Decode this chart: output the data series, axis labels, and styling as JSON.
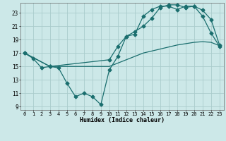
{
  "xlabel": "Humidex (Indice chaleur)",
  "bg_color": "#cce8e8",
  "grid_color": "#aacccc",
  "line_color": "#1a6e6e",
  "xlim": [
    -0.5,
    23.5
  ],
  "ylim": [
    8.5,
    24.5
  ],
  "xticks": [
    0,
    1,
    2,
    3,
    4,
    5,
    6,
    7,
    8,
    9,
    10,
    11,
    12,
    13,
    14,
    15,
    16,
    17,
    18,
    19,
    20,
    21,
    22,
    23
  ],
  "yticks": [
    9,
    11,
    13,
    15,
    17,
    19,
    21,
    23
  ],
  "line1_x": [
    0,
    1,
    2,
    3,
    4,
    5,
    6,
    7,
    8,
    9,
    10,
    11,
    12,
    13,
    14,
    15,
    16,
    17,
    18,
    19,
    20,
    21,
    22,
    23
  ],
  "line1_y": [
    17,
    16.2,
    14.8,
    15,
    14.8,
    12.5,
    10.5,
    11,
    10.5,
    9.3,
    14.5,
    16.5,
    19.5,
    19.8,
    22.5,
    23.5,
    24,
    24,
    23.5,
    24,
    24,
    22.5,
    20,
    18
  ],
  "line2_x": [
    0,
    3,
    10,
    11,
    12,
    13,
    14,
    15,
    16,
    17,
    18,
    19,
    20,
    21,
    22,
    23
  ],
  "line2_y": [
    17,
    15,
    16,
    18,
    19.5,
    20.2,
    21,
    22.2,
    23.8,
    24.2,
    24.2,
    23.8,
    24,
    23.4,
    22,
    18.2
  ],
  "line3_x": [
    0,
    3,
    10,
    11,
    12,
    13,
    14,
    15,
    16,
    17,
    18,
    19,
    20,
    21,
    22,
    23
  ],
  "line3_y": [
    17,
    15,
    15,
    15.5,
    16,
    16.5,
    17,
    17.3,
    17.6,
    17.9,
    18.2,
    18.4,
    18.6,
    18.7,
    18.6,
    18.1
  ]
}
